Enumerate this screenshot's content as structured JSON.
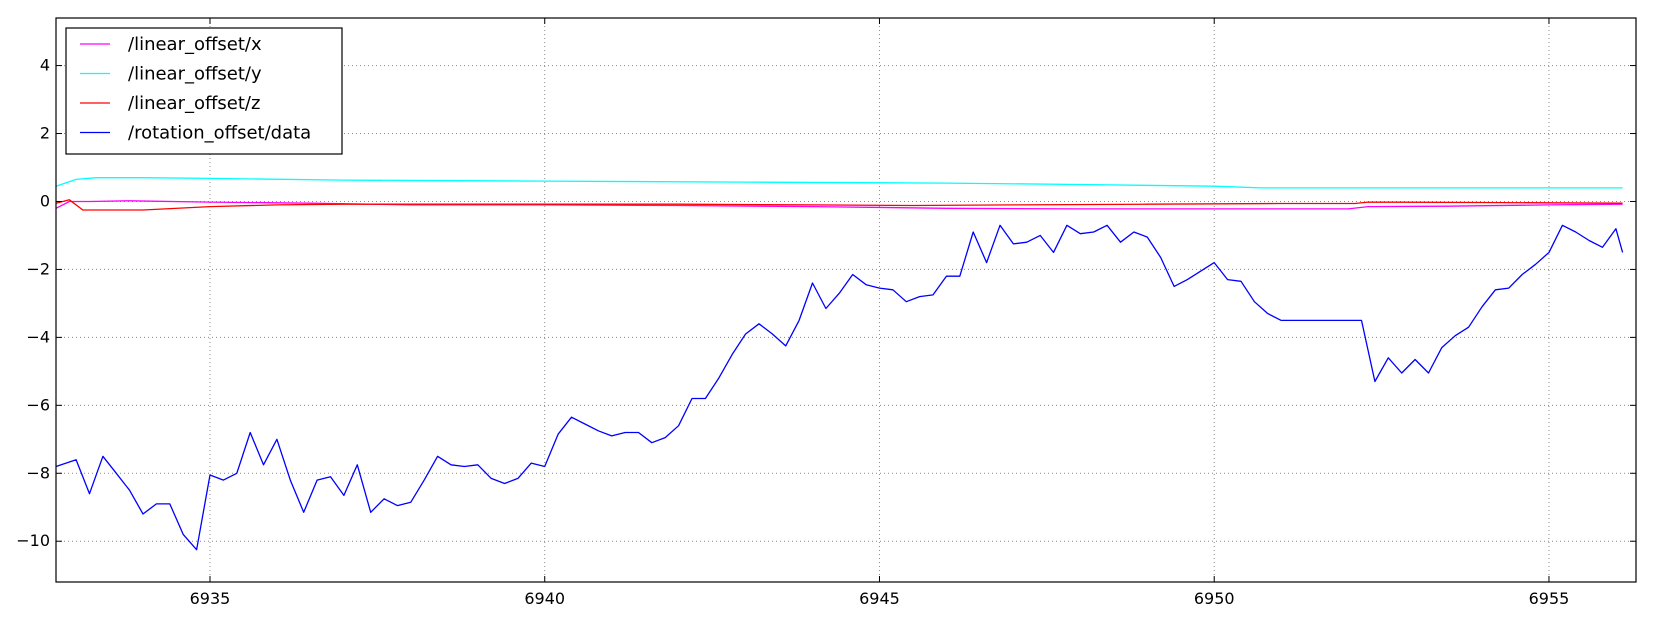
{
  "chart_data": {
    "type": "line",
    "title": "",
    "xlabel": "",
    "ylabel": "",
    "xlim": [
      6932.7,
      6956.3
    ],
    "ylim": [
      -11.2,
      5.4
    ],
    "xticks": [
      6935,
      6940,
      6945,
      6950,
      6955
    ],
    "yticks": [
      4,
      2,
      0,
      -2,
      -4,
      -6,
      -8,
      -10
    ],
    "ytick_labels": [
      "4",
      "2",
      "0",
      "−2",
      "−4",
      "−6",
      "−8",
      "−10"
    ],
    "grid": true,
    "legend_position": "top-left",
    "series": [
      {
        "name": "/linear_offset/x",
        "color": "#ff00ff",
        "x": [
          6932.7,
          6932.9,
          6933.2,
          6933.8,
          6935.0,
          6936.5,
          6938.0,
          6940.0,
          6942.0,
          6944.0,
          6946.0,
          6948.0,
          6950.0,
          6952.0,
          6952.3,
          6953.5,
          6955.0,
          6956.1
        ],
        "y": [
          -0.2,
          0.0,
          0.0,
          0.02,
          -0.02,
          -0.05,
          -0.1,
          -0.1,
          -0.12,
          -0.15,
          -0.2,
          -0.22,
          -0.22,
          -0.22,
          -0.15,
          -0.14,
          -0.1,
          -0.08
        ]
      },
      {
        "name": "/linear_offset/y",
        "color": "#00ffff",
        "x": [
          6932.7,
          6933.0,
          6933.3,
          6934.0,
          6935.0,
          6937.0,
          6940.0,
          6943.0,
          6946.0,
          6948.0,
          6950.0,
          6950.7,
          6952.0,
          6954.0,
          6956.1
        ],
        "y": [
          0.45,
          0.65,
          0.7,
          0.7,
          0.68,
          0.63,
          0.6,
          0.57,
          0.54,
          0.5,
          0.45,
          0.4,
          0.4,
          0.4,
          0.4
        ]
      },
      {
        "name": "/linear_offset/z",
        "color": "#ff0000",
        "x": [
          6932.7,
          6932.9,
          6933.1,
          6933.5,
          6934.0,
          6935.0,
          6936.0,
          6937.0,
          6938.0,
          6940.0,
          6942.0,
          6944.0,
          6945.5,
          6947.0,
          6949.0,
          6951.0,
          6952.1,
          6952.3,
          6954.0,
          6956.1
        ],
        "y": [
          -0.05,
          0.05,
          -0.25,
          -0.25,
          -0.25,
          -0.15,
          -0.1,
          -0.08,
          -0.08,
          -0.08,
          -0.08,
          -0.1,
          -0.12,
          -0.1,
          -0.08,
          -0.06,
          -0.06,
          -0.02,
          -0.03,
          -0.05
        ]
      },
      {
        "name": "/rotation_offset/data",
        "color": "#0000ff",
        "x": [
          6932.7,
          6933.0,
          6933.2,
          6933.4,
          6933.6,
          6933.8,
          6934.0,
          6934.2,
          6934.4,
          6934.6,
          6934.8,
          6935.0,
          6935.2,
          6935.4,
          6935.6,
          6935.8,
          6936.0,
          6936.2,
          6936.4,
          6936.6,
          6936.8,
          6937.0,
          6937.2,
          6937.4,
          6937.6,
          6937.8,
          6938.0,
          6938.2,
          6938.4,
          6938.6,
          6938.8,
          6939.0,
          6939.2,
          6939.4,
          6939.6,
          6939.8,
          6940.0,
          6940.2,
          6940.4,
          6940.6,
          6940.8,
          6941.0,
          6941.2,
          6941.4,
          6941.6,
          6941.8,
          6942.0,
          6942.2,
          6942.4,
          6942.6,
          6942.8,
          6943.0,
          6943.2,
          6943.4,
          6943.6,
          6943.8,
          6944.0,
          6944.2,
          6944.4,
          6944.6,
          6944.8,
          6945.0,
          6945.2,
          6945.4,
          6945.6,
          6945.8,
          6946.0,
          6946.2,
          6946.4,
          6946.6,
          6946.8,
          6947.0,
          6947.2,
          6947.4,
          6947.6,
          6947.8,
          6948.0,
          6948.2,
          6948.4,
          6948.6,
          6948.8,
          6949.0,
          6949.2,
          6949.4,
          6949.6,
          6949.8,
          6950.0,
          6950.2,
          6950.4,
          6950.6,
          6950.8,
          6951.0,
          6951.5,
          6952.0,
          6952.2,
          6952.4,
          6952.6,
          6952.8,
          6953.0,
          6953.2,
          6953.4,
          6953.6,
          6953.8,
          6954.0,
          6954.2,
          6954.4,
          6954.6,
          6954.8,
          6955.0,
          6955.2,
          6955.4,
          6955.6,
          6955.8,
          6956.0,
          6956.1
        ],
        "y": [
          -7.8,
          -7.6,
          -8.6,
          -7.5,
          -8.0,
          -8.5,
          -9.2,
          -8.9,
          -8.9,
          -9.8,
          -10.25,
          -8.05,
          -8.2,
          -8.0,
          -6.8,
          -7.75,
          -7.0,
          -8.2,
          -9.15,
          -8.2,
          -8.1,
          -8.65,
          -7.75,
          -9.15,
          -8.75,
          -8.95,
          -8.85,
          -8.2,
          -7.5,
          -7.75,
          -7.8,
          -7.75,
          -8.15,
          -8.3,
          -8.15,
          -7.7,
          -7.8,
          -6.85,
          -6.35,
          -6.55,
          -6.75,
          -6.9,
          -6.8,
          -6.8,
          -7.1,
          -6.95,
          -6.6,
          -5.8,
          -5.8,
          -5.2,
          -4.5,
          -3.9,
          -3.6,
          -3.9,
          -4.25,
          -3.5,
          -2.4,
          -3.15,
          -2.7,
          -2.15,
          -2.45,
          -2.55,
          -2.6,
          -2.95,
          -2.8,
          -2.75,
          -2.2,
          -2.2,
          -0.9,
          -1.8,
          -0.7,
          -1.25,
          -1.2,
          -1.0,
          -1.5,
          -0.7,
          -0.95,
          -0.9,
          -0.7,
          -1.2,
          -0.9,
          -1.05,
          -1.65,
          -2.5,
          -2.3,
          -2.05,
          -1.8,
          -2.3,
          -2.35,
          -2.95,
          -3.3,
          -3.5,
          -3.5,
          -3.5,
          -3.5,
          -5.3,
          -4.6,
          -5.05,
          -4.65,
          -5.05,
          -4.3,
          -3.95,
          -3.7,
          -3.1,
          -2.6,
          -2.55,
          -2.15,
          -1.85,
          -1.5,
          -0.7,
          -0.9,
          -1.15,
          -1.35,
          -0.8,
          -1.5
        ]
      }
    ]
  }
}
